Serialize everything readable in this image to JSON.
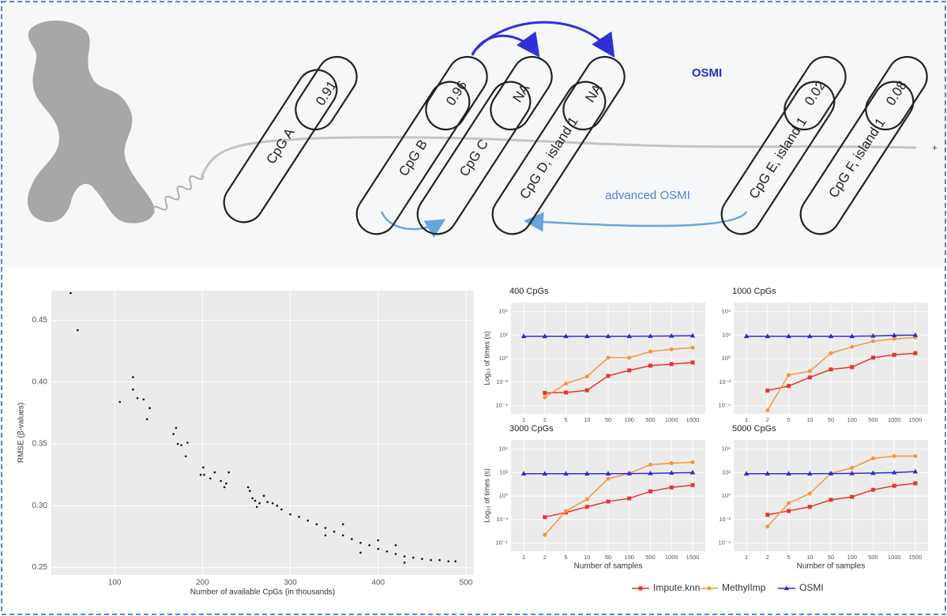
{
  "diagram": {
    "cpgs": [
      {
        "label": "CpG A",
        "value": "0.91"
      },
      {
        "label": "CpG B",
        "value": "0.96"
      },
      {
        "label": "CpG C",
        "value": "NA"
      },
      {
        "label": "CpG D, island 1",
        "value": "NA"
      },
      {
        "label": "CpG E, island 1",
        "value": "0.02"
      },
      {
        "label": "CpG F, island 1",
        "value": "0.08"
      }
    ],
    "osmi": "OSMI",
    "advanced": "advanced OSMI"
  },
  "chart_data": [
    {
      "type": "scatter",
      "xlabel": "Number of available CpGs (in thousands)",
      "ylabel": "RMSE (β-values)",
      "x": [
        50,
        58,
        106,
        121,
        121,
        126,
        133,
        137,
        140,
        167,
        170,
        172,
        176,
        181,
        183,
        198,
        201,
        202,
        209,
        214,
        221,
        225,
        227,
        230,
        252,
        254,
        257,
        260,
        262,
        265,
        270,
        274,
        280,
        285,
        290,
        300,
        310,
        320,
        330,
        340,
        340,
        350,
        360,
        360,
        370,
        380,
        380,
        390,
        400,
        400,
        410,
        420,
        420,
        430,
        430,
        440,
        450,
        460,
        470,
        480,
        488
      ],
      "values": [
        0.472,
        0.442,
        0.384,
        0.404,
        0.394,
        0.387,
        0.386,
        0.37,
        0.379,
        0.358,
        0.363,
        0.35,
        0.349,
        0.34,
        0.351,
        0.325,
        0.331,
        0.325,
        0.322,
        0.327,
        0.32,
        0.315,
        0.318,
        0.327,
        0.315,
        0.312,
        0.306,
        0.304,
        0.299,
        0.302,
        0.308,
        0.303,
        0.302,
        0.3,
        0.297,
        0.293,
        0.291,
        0.288,
        0.285,
        0.282,
        0.276,
        0.279,
        0.276,
        0.285,
        0.273,
        0.27,
        0.262,
        0.268,
        0.265,
        0.272,
        0.263,
        0.261,
        0.268,
        0.259,
        0.254,
        0.258,
        0.257,
        0.256,
        0.256,
        0.255,
        0.255
      ],
      "color": "#111111",
      "xlim": [
        28,
        509
      ],
      "ylim": [
        0.244,
        0.474
      ],
      "xticks": [
        100,
        200,
        300,
        400,
        500
      ],
      "yticks": [
        0.25,
        {
          "value": 0.3,
          "label": "0.30"
        },
        0.35,
        {
          "value": 0.4,
          "label": "0.40"
        },
        0.45
      ],
      "grid": true
    },
    {
      "type": "line",
      "title": "400 CpGs",
      "ylabel": "Log₁₀ of times (s)",
      "yscale": "log",
      "categories": [
        "1",
        "2",
        "5",
        "10",
        "50",
        "100",
        "500",
        "1000",
        "1500"
      ],
      "ylim": [
        2e-05,
        60000
      ],
      "yticks": [
        {
          "value": 0.0001,
          "label": "10⁻⁴"
        },
        {
          "value": 0.01,
          "label": "10⁻²"
        },
        {
          "value": 1,
          "label": "10⁰"
        },
        {
          "value": 100,
          "label": "10²"
        },
        {
          "value": 10000,
          "label": "10⁴"
        }
      ],
      "series": [
        {
          "name": "Impute.knn",
          "color": "#e8332e",
          "marker": "square",
          "values": [
            null,
            0.0012,
            0.0013,
            0.002,
            0.034,
            0.1,
            0.25,
            0.34,
            0.47
          ]
        },
        {
          "name": "MethylImp",
          "color": "#f5963f",
          "marker": "circle",
          "values": [
            null,
            0.0005,
            0.0075,
            0.03,
            1.2,
            1.2,
            4,
            6.3,
            8.5
          ]
        },
        {
          "name": "OSMI",
          "color": "#2b2bd0",
          "marker": "triangle",
          "values": [
            80,
            80,
            80,
            80,
            80,
            80,
            82,
            85,
            90
          ]
        }
      ]
    },
    {
      "type": "line",
      "title": "1000 CpGs",
      "yscale": "log",
      "categories": [
        "1",
        "2",
        "5",
        "10",
        "50",
        "100",
        "500",
        "1000",
        "1500"
      ],
      "ylim": [
        2e-05,
        60000
      ],
      "yticks": [
        {
          "value": 0.0001,
          "label": "10⁻⁴"
        },
        {
          "value": 0.01,
          "label": "10⁻²"
        },
        {
          "value": 1,
          "label": "10⁰"
        },
        {
          "value": 100,
          "label": "10²"
        },
        {
          "value": 10000,
          "label": "10⁴"
        }
      ],
      "series": [
        {
          "name": "Impute.knn",
          "color": "#e8332e",
          "marker": "square",
          "values": [
            null,
            0.0019,
            0.0047,
            0.025,
            0.12,
            0.19,
            1.2,
            2.1,
            2.9
          ]
        },
        {
          "name": "MethylImp",
          "color": "#f5963f",
          "marker": "circle",
          "values": [
            null,
            4e-05,
            0.04,
            0.085,
            2.9,
            10,
            30,
            47,
            63
          ]
        },
        {
          "name": "OSMI",
          "color": "#2b2bd0",
          "marker": "triangle",
          "values": [
            80,
            80,
            80,
            80,
            80,
            80,
            85,
            95,
            100
          ]
        }
      ]
    },
    {
      "type": "line",
      "title": "3000 CpGs",
      "ylabel": "Log₁₀ of times (s)",
      "xlabel": "Number of samples",
      "yscale": "log",
      "categories": [
        "1",
        "2",
        "5",
        "10",
        "50",
        "100",
        "500",
        "1000",
        "1500"
      ],
      "ylim": [
        2e-05,
        60000
      ],
      "yticks": [
        {
          "value": 0.0001,
          "label": "10⁻⁴"
        },
        {
          "value": 0.01,
          "label": "10⁻²"
        },
        {
          "value": 1,
          "label": "10⁰"
        },
        {
          "value": 100,
          "label": "10²"
        },
        {
          "value": 10000,
          "label": "10⁴"
        }
      ],
      "series": [
        {
          "name": "Impute.knn",
          "color": "#e8332e",
          "marker": "square",
          "values": [
            null,
            0.016,
            0.04,
            0.12,
            0.34,
            0.63,
            2.5,
            5.4,
            8.5
          ]
        },
        {
          "name": "MethylImp",
          "color": "#f5963f",
          "marker": "circle",
          "values": [
            null,
            0.0005,
            0.054,
            0.54,
            30,
            85,
            470,
            630,
            740
          ]
        },
        {
          "name": "OSMI",
          "color": "#2b2bd0",
          "marker": "triangle",
          "values": [
            80,
            80,
            80,
            80,
            80,
            82,
            85,
            92,
            100
          ]
        }
      ]
    },
    {
      "type": "line",
      "title": "5000 CpGs",
      "xlabel": "Number of samples",
      "yscale": "log",
      "categories": [
        "1",
        "2",
        "5",
        "10",
        "50",
        "100",
        "500",
        "1000",
        "1500"
      ],
      "ylim": [
        2e-05,
        60000
      ],
      "yticks": [
        {
          "value": 0.0001,
          "label": "10⁻⁴"
        },
        {
          "value": 0.01,
          "label": "10⁻²"
        },
        {
          "value": 1,
          "label": "10⁰"
        },
        {
          "value": 100,
          "label": "10²"
        },
        {
          "value": 10000,
          "label": "10⁴"
        }
      ],
      "series": [
        {
          "name": "Impute.knn",
          "color": "#e8332e",
          "marker": "square",
          "values": [
            null,
            0.025,
            0.054,
            0.12,
            0.47,
            0.85,
            3.4,
            7.4,
            12
          ]
        },
        {
          "name": "MethylImp",
          "color": "#f5963f",
          "marker": "circle",
          "values": [
            null,
            0.0025,
            0.25,
            1.6,
            85,
            250,
            1600,
            2500,
            2500
          ]
        },
        {
          "name": "OSMI",
          "color": "#2b2bd0",
          "marker": "triangle",
          "values": [
            80,
            80,
            80,
            80,
            82,
            85,
            90,
            100,
            120
          ]
        }
      ]
    }
  ]
}
